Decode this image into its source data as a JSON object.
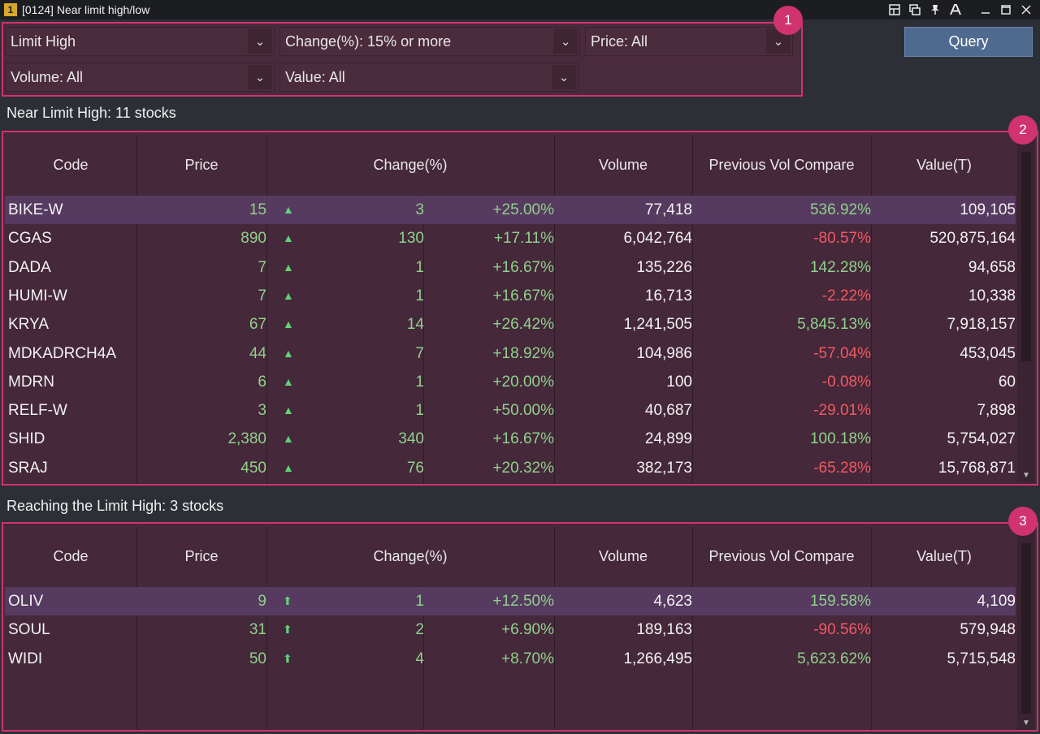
{
  "window": {
    "badge": "1",
    "title": "[0124] Near limit high/low"
  },
  "filters": {
    "mode": "Limit High",
    "change": "Change(%): 15% or more",
    "price": "Price: All",
    "volume": "Volume: All",
    "value": "Value: All"
  },
  "query_label": "Query",
  "markers": [
    "1",
    "2",
    "3"
  ],
  "columns": [
    "Code",
    "Price",
    "Change(%)",
    "Volume",
    "Previous Vol Compare",
    "Value(T)"
  ],
  "near": {
    "label": "Near Limit High: 11 stocks",
    "rows": [
      {
        "code": "BIKE-W",
        "price": "15",
        "chg": "3",
        "pct": "+25.00%",
        "vol": "77,418",
        "prev": "536.92%",
        "prev_dir": "up",
        "val": "109,105"
      },
      {
        "code": "CGAS",
        "price": "890",
        "chg": "130",
        "pct": "+17.11%",
        "vol": "6,042,764",
        "prev": "-80.57%",
        "prev_dir": "down",
        "val": "520,875,164"
      },
      {
        "code": "DADA",
        "price": "7",
        "chg": "1",
        "pct": "+16.67%",
        "vol": "135,226",
        "prev": "142.28%",
        "prev_dir": "up",
        "val": "94,658"
      },
      {
        "code": "HUMI-W",
        "price": "7",
        "chg": "1",
        "pct": "+16.67%",
        "vol": "16,713",
        "prev": "-2.22%",
        "prev_dir": "down",
        "val": "10,338"
      },
      {
        "code": "KRYA",
        "price": "67",
        "chg": "14",
        "pct": "+26.42%",
        "vol": "1,241,505",
        "prev": "5,845.13%",
        "prev_dir": "up",
        "val": "7,918,157"
      },
      {
        "code": "MDKADRCH4A",
        "price": "44",
        "chg": "7",
        "pct": "+18.92%",
        "vol": "104,986",
        "prev": "-57.04%",
        "prev_dir": "down",
        "val": "453,045"
      },
      {
        "code": "MDRN",
        "price": "6",
        "chg": "1",
        "pct": "+20.00%",
        "vol": "100",
        "prev": "-0.08%",
        "prev_dir": "down",
        "val": "60"
      },
      {
        "code": "RELF-W",
        "price": "3",
        "chg": "1",
        "pct": "+50.00%",
        "vol": "40,687",
        "prev": "-29.01%",
        "prev_dir": "down",
        "val": "7,898"
      },
      {
        "code": "SHID",
        "price": "2,380",
        "chg": "340",
        "pct": "+16.67%",
        "vol": "24,899",
        "prev": "100.18%",
        "prev_dir": "up",
        "val": "5,754,027"
      },
      {
        "code": "SRAJ",
        "price": "450",
        "chg": "76",
        "pct": "+20.32%",
        "vol": "382,173",
        "prev": "-65.28%",
        "prev_dir": "down",
        "val": "15,768,871"
      }
    ]
  },
  "reach": {
    "label": "Reaching the Limit High: 3 stocks",
    "rows": [
      {
        "code": "OLIV",
        "price": "9",
        "chg": "1",
        "pct": "+12.50%",
        "vol": "4,623",
        "prev": "159.58%",
        "prev_dir": "up",
        "val": "4,109"
      },
      {
        "code": "SOUL",
        "price": "31",
        "chg": "2",
        "pct": "+6.90%",
        "vol": "189,163",
        "prev": "-90.56%",
        "prev_dir": "down",
        "val": "579,948"
      },
      {
        "code": "WIDI",
        "price": "50",
        "chg": "4",
        "pct": "+8.70%",
        "vol": "1,266,495",
        "prev": "5,623.62%",
        "prev_dir": "up",
        "val": "5,715,548"
      }
    ]
  },
  "icons": {
    "near_row_icon": "triangle-up-icon",
    "reach_row_icon": "arrow-up-icon"
  },
  "colors": {
    "accent": "#d0336e",
    "up": "#8fd18b",
    "down": "#f05a63",
    "selected_row": "#563a5f",
    "query_button": "#4e6a8e"
  }
}
